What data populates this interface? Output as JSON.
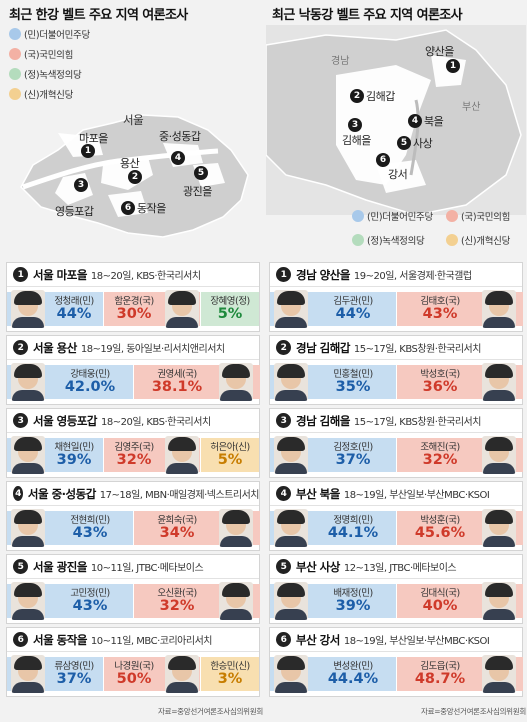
{
  "left": {
    "title": "최근 한강 벨트 주요 지역 여론조사",
    "legend": [
      "(민)더불어민주당",
      "(국)국민의힘",
      "(정)녹색정의당",
      "(신)개혁신당"
    ],
    "map": {
      "region_label": "서울",
      "pins": [
        {
          "num": "1",
          "label": "마포을"
        },
        {
          "num": "2",
          "label": "용산"
        },
        {
          "num": "3",
          "label": "영등포갑"
        },
        {
          "num": "4",
          "label": "중·성동갑"
        },
        {
          "num": "5",
          "label": "광진을"
        },
        {
          "num": "6",
          "label": "동작을"
        }
      ]
    },
    "cards": [
      {
        "num": "1",
        "region": "서울 마포을",
        "meta": "18~20일, KBS·한국리서치",
        "cands": [
          {
            "name": "정청래(민)",
            "pct": "44%",
            "party": "dem"
          },
          {
            "name": "함운경(국)",
            "pct": "30%",
            "party": "ppp"
          },
          {
            "name": "장혜영(정)",
            "pct": "5%",
            "party": "jus"
          }
        ]
      },
      {
        "num": "2",
        "region": "서울 용산",
        "meta": "18~19일, 동아일보·리서치앤리서치",
        "cands": [
          {
            "name": "강태웅(민)",
            "pct": "42.0%",
            "party": "dem"
          },
          {
            "name": "권영세(국)",
            "pct": "38.1%",
            "party": "ppp"
          }
        ]
      },
      {
        "num": "3",
        "region": "서울 영등포갑",
        "meta": "18~20일, KBS·한국리서치",
        "cands": [
          {
            "name": "채현일(민)",
            "pct": "39%",
            "party": "dem"
          },
          {
            "name": "김영주(국)",
            "pct": "32%",
            "party": "ppp"
          },
          {
            "name": "허은아(신)",
            "pct": "5%",
            "party": "ref"
          }
        ]
      },
      {
        "num": "4",
        "region": "서울 중·성동갑",
        "meta": "17~18일, MBN·매일경제·넥스트리서치",
        "cands": [
          {
            "name": "전현희(민)",
            "pct": "43%",
            "party": "dem"
          },
          {
            "name": "윤희숙(국)",
            "pct": "34%",
            "party": "ppp"
          }
        ]
      },
      {
        "num": "5",
        "region": "서울 광진을",
        "meta": "10~11일, JTBC·메타보이스",
        "cands": [
          {
            "name": "고민정(민)",
            "pct": "43%",
            "party": "dem"
          },
          {
            "name": "오신환(국)",
            "pct": "32%",
            "party": "ppp"
          }
        ]
      },
      {
        "num": "6",
        "region": "서울 동작을",
        "meta": "10~11일, MBC·코리아리서치",
        "cands": [
          {
            "name": "류삼영(민)",
            "pct": "37%",
            "party": "dem"
          },
          {
            "name": "나경원(국)",
            "pct": "50%",
            "party": "ppp"
          },
          {
            "name": "한승민(신)",
            "pct": "3%",
            "party": "ref"
          }
        ]
      }
    ],
    "source": "자료=중앙선거여론조사심의위원회"
  },
  "right": {
    "title": "최근 낙동강 벨트 주요 지역 여론조사",
    "legend": [
      "(민)더불어민주당",
      "(국)국민의힘",
      "(정)녹색정의당",
      "(신)개혁신당"
    ],
    "map": {
      "region_labels": [
        "경남",
        "부산"
      ],
      "pins": [
        {
          "num": "1",
          "label": "양산을"
        },
        {
          "num": "2",
          "label": "김해갑"
        },
        {
          "num": "3",
          "label": "김해을"
        },
        {
          "num": "4",
          "label": "북을"
        },
        {
          "num": "5",
          "label": "사상"
        },
        {
          "num": "6",
          "label": "강서"
        }
      ]
    },
    "cards": [
      {
        "num": "1",
        "region": "경남 양산을",
        "meta": "19~20일, 서울경제·한국갤럽",
        "cands": [
          {
            "name": "김두관(민)",
            "pct": "44%",
            "party": "dem"
          },
          {
            "name": "김태호(국)",
            "pct": "43%",
            "party": "ppp"
          }
        ]
      },
      {
        "num": "2",
        "region": "경남 김해갑",
        "meta": "15~17일, KBS창원·한국리서치",
        "cands": [
          {
            "name": "민홍철(민)",
            "pct": "35%",
            "party": "dem"
          },
          {
            "name": "박성호(국)",
            "pct": "36%",
            "party": "ppp"
          }
        ]
      },
      {
        "num": "3",
        "region": "경남 김해을",
        "meta": "15~17일, KBS창원·한국리서치",
        "cands": [
          {
            "name": "김정호(민)",
            "pct": "37%",
            "party": "dem"
          },
          {
            "name": "조해진(국)",
            "pct": "32%",
            "party": "ppp"
          }
        ]
      },
      {
        "num": "4",
        "region": "부산 북을",
        "meta": "18~19일, 부산일보·부산MBC·KSOI",
        "cands": [
          {
            "name": "정명희(민)",
            "pct": "44.1%",
            "party": "dem"
          },
          {
            "name": "박성훈(국)",
            "pct": "45.6%",
            "party": "ppp"
          }
        ]
      },
      {
        "num": "5",
        "region": "부산 사상",
        "meta": "12~13일, JTBC·메타보이스",
        "cands": [
          {
            "name": "배재정(민)",
            "pct": "39%",
            "party": "dem"
          },
          {
            "name": "김대식(국)",
            "pct": "40%",
            "party": "ppp"
          }
        ]
      },
      {
        "num": "6",
        "region": "부산 강서",
        "meta": "18~19일, 부산일보·부산MBC·KSOI",
        "cands": [
          {
            "name": "변성완(민)",
            "pct": "44.4%",
            "party": "dem"
          },
          {
            "name": "김도읍(국)",
            "pct": "48.7%",
            "party": "ppp"
          }
        ]
      }
    ],
    "source": "자료=중앙선거여론조사심의위원회"
  },
  "colors": {
    "dem": "#c6ddf1",
    "ppp": "#f6c9c0",
    "jus": "#cfe8d4",
    "ref": "#f8dfb0",
    "dem_text": "#1d5ea8",
    "ppp_text": "#cf3a2a",
    "jus_text": "#1f8a3d",
    "ref_text": "#c77d00"
  }
}
